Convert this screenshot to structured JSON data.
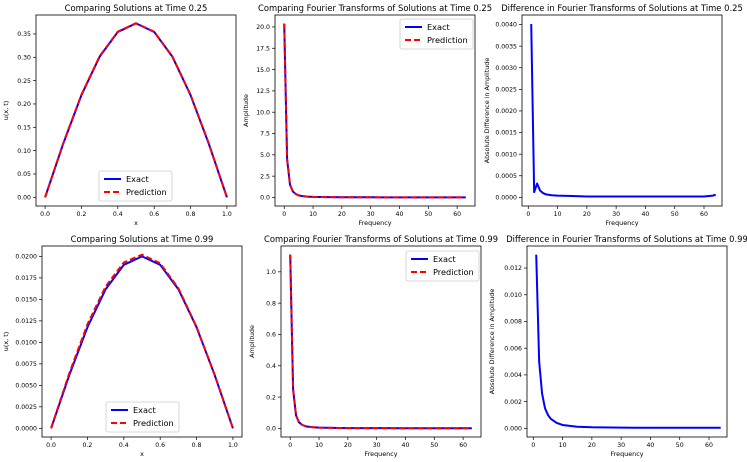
{
  "chart_data": [
    {
      "type": "line",
      "title": "Comparing Solutions at Time 0.25",
      "xlabel": "x",
      "ylabel": "u(x, t)",
      "xlim": [
        -0.05,
        1.05
      ],
      "ylim": [
        -0.0186,
        0.3906
      ],
      "xticks": [
        0.0,
        0.2,
        0.4,
        0.6,
        0.8,
        1.0
      ],
      "xtick_labels": [
        "0.0",
        "0.2",
        "0.4",
        "0.6",
        "0.8",
        "1.0"
      ],
      "yticks": [
        0.0,
        0.05,
        0.1,
        0.15,
        0.2,
        0.25,
        0.3,
        0.35
      ],
      "ytick_labels": [
        "0.00",
        "0.05",
        "0.10",
        "0.15",
        "0.20",
        "0.25",
        "0.30",
        "0.35"
      ],
      "legend": {
        "position": "lower center",
        "entries": [
          "Exact",
          "Prediction"
        ]
      },
      "x": [
        0.0,
        0.1,
        0.2,
        0.3,
        0.4,
        0.5,
        0.6,
        0.7,
        0.8,
        0.9,
        1.0
      ],
      "series": [
        {
          "name": "Exact",
          "color": "#0000ff",
          "style": "solid",
          "values": [
            0.0,
            0.1151,
            0.219,
            0.3014,
            0.3543,
            0.3726,
            0.3543,
            0.3014,
            0.219,
            0.1151,
            0.0
          ]
        },
        {
          "name": "Prediction",
          "color": "#ff0000",
          "style": "dashed",
          "values": [
            0.0,
            0.116,
            0.2201,
            0.3023,
            0.355,
            0.373,
            0.3547,
            0.3017,
            0.2193,
            0.1155,
            0.0
          ]
        }
      ]
    },
    {
      "type": "line",
      "title": "Comparing Fourier Transforms of Solutions at Time 0.25",
      "xlabel": "Frequency",
      "ylabel": "Amplitude",
      "xlim": [
        -3.2,
        66.2
      ],
      "ylim": [
        -1.0,
        21.4
      ],
      "xticks": [
        0,
        10,
        20,
        30,
        40,
        50,
        60
      ],
      "xtick_labels": [
        "0",
        "10",
        "20",
        "30",
        "40",
        "50",
        "60"
      ],
      "yticks": [
        0.0,
        2.5,
        5.0,
        7.5,
        10.0,
        12.5,
        15.0,
        17.5,
        20.0
      ],
      "ytick_labels": [
        "0.0",
        "2.5",
        "5.0",
        "7.5",
        "10.0",
        "12.5",
        "15.0",
        "17.5",
        "20.0"
      ],
      "legend": {
        "position": "upper right",
        "entries": [
          "Exact",
          "Prediction"
        ]
      },
      "x": [
        0,
        1,
        2,
        3,
        4,
        5,
        6,
        8,
        10,
        15,
        20,
        30,
        40,
        50,
        63
      ],
      "series": [
        {
          "name": "Exact",
          "color": "#0000ff",
          "style": "solid",
          "values": [
            20.4,
            4.5,
            1.5,
            0.7,
            0.4,
            0.25,
            0.17,
            0.1,
            0.07,
            0.04,
            0.03,
            0.02,
            0.015,
            0.012,
            0.01
          ]
        },
        {
          "name": "Prediction",
          "color": "#ff0000",
          "style": "dashed",
          "values": [
            20.4,
            4.5,
            1.5,
            0.7,
            0.4,
            0.25,
            0.17,
            0.1,
            0.07,
            0.04,
            0.03,
            0.02,
            0.015,
            0.012,
            0.01
          ]
        }
      ]
    },
    {
      "type": "line",
      "title": "Difference in Fourier Transforms of Solutions at Time 0.25",
      "xlabel": "Frequency",
      "ylabel": "Absolute Difference in Amplitude",
      "xlim": [
        -2.15,
        66.15
      ],
      "ylim": [
        -0.0002,
        0.00422
      ],
      "xticks": [
        0,
        10,
        20,
        30,
        40,
        50,
        60
      ],
      "xtick_labels": [
        "0",
        "10",
        "20",
        "30",
        "40",
        "50",
        "60"
      ],
      "yticks": [
        0.0,
        0.0005,
        0.001,
        0.0015,
        0.002,
        0.0025,
        0.003,
        0.0035,
        0.004
      ],
      "ytick_labels": [
        "0.0000",
        "0.0005",
        "0.0010",
        "0.0015",
        "0.0020",
        "0.0025",
        "0.0030",
        "0.0035",
        "0.0040"
      ],
      "x": [
        1,
        2,
        3,
        4,
        5,
        6,
        8,
        10,
        15,
        20,
        30,
        40,
        50,
        60,
        63,
        64
      ],
      "series": [
        {
          "name": "Difference",
          "color": "#0000ff",
          "style": "solid",
          "values": [
            0.00401,
            0.00012,
            0.00032,
            0.00016,
            0.0001,
            7e-05,
            5e-05,
            4e-05,
            3e-05,
            2e-05,
            2e-05,
            2e-05,
            2e-05,
            2e-05,
            4e-05,
            6e-05
          ]
        }
      ]
    },
    {
      "type": "line",
      "title": "Comparing Solutions at Time 0.99",
      "xlabel": "x",
      "ylabel": "u(x, t)",
      "xlim": [
        -0.05,
        1.05
      ],
      "ylim": [
        -0.00101,
        0.02121
      ],
      "xticks": [
        0.0,
        0.2,
        0.4,
        0.6,
        0.8,
        1.0
      ],
      "xtick_labels": [
        "0.0",
        "0.2",
        "0.4",
        "0.6",
        "0.8",
        "1.0"
      ],
      "yticks": [
        0.0,
        0.0025,
        0.005,
        0.0075,
        0.01,
        0.0125,
        0.015,
        0.0175,
        0.02
      ],
      "ytick_labels": [
        "0.0000",
        "0.0025",
        "0.0050",
        "0.0075",
        "0.0100",
        "0.0125",
        "0.0150",
        "0.0175",
        "0.0200"
      ],
      "legend": {
        "position": "lower center",
        "entries": [
          "Exact",
          "Prediction"
        ]
      },
      "x": [
        0.0,
        0.1,
        0.2,
        0.3,
        0.4,
        0.5,
        0.6,
        0.7,
        0.8,
        0.9,
        1.0
      ],
      "series": [
        {
          "name": "Exact",
          "color": "#0000ff",
          "style": "solid",
          "values": [
            0.0,
            0.00618,
            0.01176,
            0.01618,
            0.01902,
            0.02,
            0.01902,
            0.01618,
            0.01176,
            0.00618,
            0.0
          ]
        },
        {
          "name": "Prediction",
          "color": "#ff0000",
          "style": "dashed",
          "values": [
            0.0,
            0.0064,
            0.0121,
            0.0165,
            0.0193,
            0.0202,
            0.0192,
            0.0163,
            0.0118,
            0.0062,
            0.0
          ]
        }
      ]
    },
    {
      "type": "line",
      "title": "Comparing Fourier Transforms of Solutions at Time 0.99",
      "xlabel": "Frequency",
      "ylabel": "Amplitude",
      "xlim": [
        -3.2,
        66.2
      ],
      "ylim": [
        -0.055,
        1.165
      ],
      "xticks": [
        0,
        10,
        20,
        30,
        40,
        50,
        60
      ],
      "xtick_labels": [
        "0",
        "10",
        "20",
        "30",
        "40",
        "50",
        "60"
      ],
      "yticks": [
        0.0,
        0.2,
        0.4,
        0.6,
        0.8,
        1.0
      ],
      "ytick_labels": [
        "0.0",
        "0.2",
        "0.4",
        "0.6",
        "0.8",
        "1.0"
      ],
      "legend": {
        "position": "upper right",
        "entries": [
          "Exact",
          "Prediction"
        ]
      },
      "x": [
        0,
        1,
        2,
        3,
        4,
        5,
        6,
        8,
        10,
        15,
        20,
        30,
        40,
        50,
        63
      ],
      "series": [
        {
          "name": "Exact",
          "color": "#0000ff",
          "style": "solid",
          "values": [
            1.11,
            0.25,
            0.085,
            0.04,
            0.024,
            0.016,
            0.011,
            0.007,
            0.005,
            0.003,
            0.002,
            0.0015,
            0.001,
            0.001,
            0.001
          ]
        },
        {
          "name": "Prediction",
          "color": "#ff0000",
          "style": "dashed",
          "values": [
            1.11,
            0.25,
            0.085,
            0.04,
            0.024,
            0.016,
            0.011,
            0.007,
            0.005,
            0.003,
            0.002,
            0.0015,
            0.001,
            0.001,
            0.001
          ]
        }
      ]
    },
    {
      "type": "line",
      "title": "Difference in Fourier Transforms of Solutions at Time 0.99",
      "xlabel": "Frequency",
      "ylabel": "Absolute Difference in Amplitude",
      "xlim": [
        -2.15,
        66.15
      ],
      "ylim": [
        -0.00065,
        0.01365
      ],
      "xticks": [
        0,
        10,
        20,
        30,
        40,
        50,
        60
      ],
      "xtick_labels": [
        "0",
        "10",
        "20",
        "30",
        "40",
        "50",
        "60"
      ],
      "yticks": [
        0.0,
        0.002,
        0.004,
        0.006,
        0.008,
        0.01,
        0.012
      ],
      "ytick_labels": [
        "0.000",
        "0.002",
        "0.004",
        "0.006",
        "0.008",
        "0.010",
        "0.012"
      ],
      "x": [
        1,
        2,
        3,
        4,
        5,
        6,
        8,
        10,
        15,
        20,
        30,
        40,
        50,
        60,
        64
      ],
      "series": [
        {
          "name": "Difference",
          "color": "#0000ff",
          "style": "solid",
          "values": [
            0.013,
            0.005,
            0.0026,
            0.0015,
            0.001,
            0.0007,
            0.0004,
            0.00025,
            0.00012,
            8e-05,
            5e-05,
            4e-05,
            4e-05,
            4e-05,
            4e-05
          ]
        }
      ]
    }
  ]
}
